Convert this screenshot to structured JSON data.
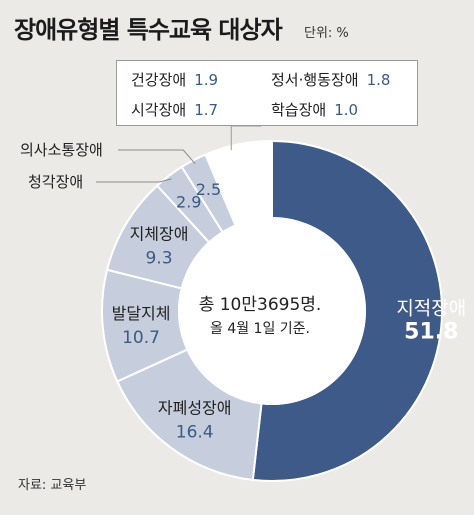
{
  "header": {
    "title": "장애유형별 특수교육 대상자",
    "unit": "단위: %"
  },
  "center": {
    "line1": "총 10만3695명.",
    "line2": "올 4월 1일 기준."
  },
  "source": "자료: 교육부",
  "colors": {
    "major": "#3e5a88",
    "minor": "#c6cede",
    "other": "#ffffff",
    "divider": "#ffffff",
    "value_text": "#3b5a86"
  },
  "chart_data": {
    "type": "pie",
    "unit": "%",
    "slices": [
      {
        "label": "지적장애",
        "value": 51.8
      },
      {
        "label": "자폐성장애",
        "value": 16.4
      },
      {
        "label": "발달지체",
        "value": 10.7
      },
      {
        "label": "지체장애",
        "value": 9.3
      },
      {
        "label": "청각장애",
        "value": 2.9
      },
      {
        "label": "의사소통장애",
        "value": 2.5
      },
      {
        "label": "",
        "value": 6.4,
        "other": true
      }
    ],
    "other_breakdown": [
      {
        "label": "건강장애",
        "value": "1.9"
      },
      {
        "label": "정서·행동장애",
        "value": "1.8"
      },
      {
        "label": "시각장애",
        "value": "1.7"
      },
      {
        "label": "학습장애",
        "value": "1.0"
      }
    ]
  }
}
